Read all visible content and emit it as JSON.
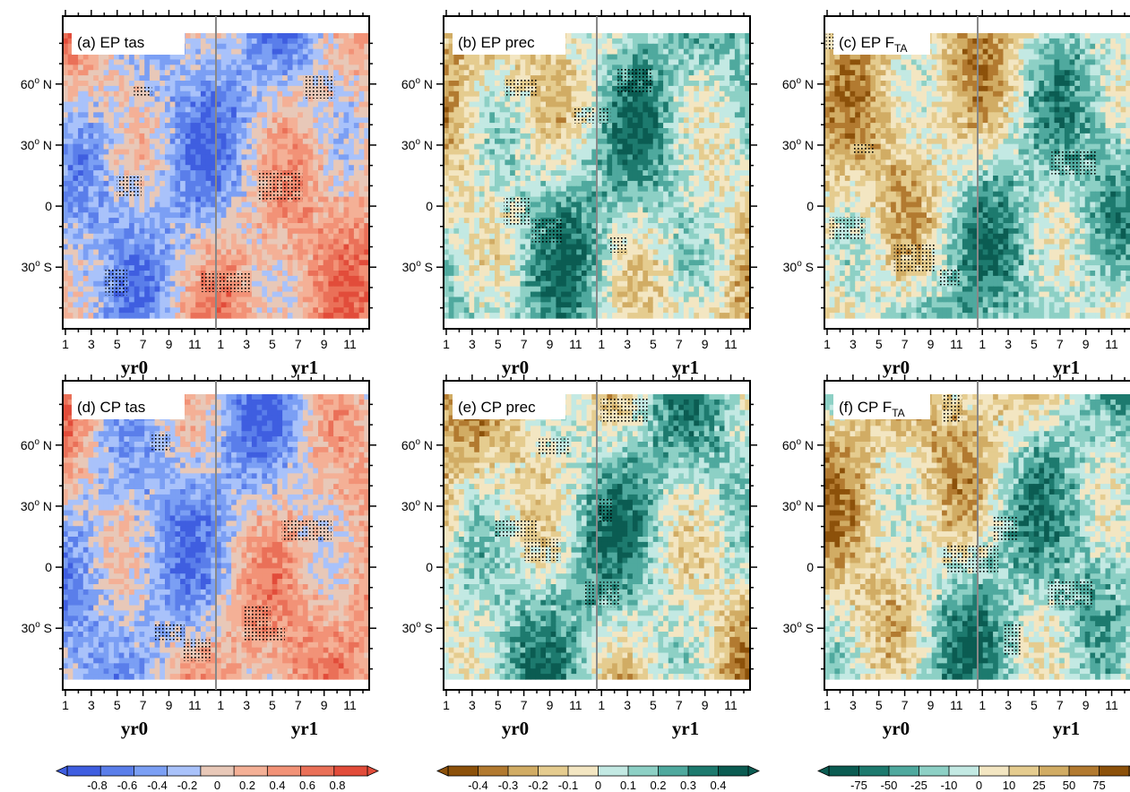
{
  "figure": {
    "panels": [
      {
        "id": "a",
        "title": "(a) EP  tas",
        "scale": "tas"
      },
      {
        "id": "b",
        "title": "(b) EP prec",
        "scale": "prec"
      },
      {
        "id": "c",
        "title": "(c) EP F",
        "title_sub": "TA",
        "scale": "fta"
      },
      {
        "id": "d",
        "title": "(d) CP  tas",
        "scale": "tas"
      },
      {
        "id": "e",
        "title": "(e) CP prec",
        "scale": "prec"
      },
      {
        "id": "f",
        "title": "(f) CP F",
        "title_sub": "TA",
        "scale": "fta"
      }
    ],
    "x_tick_labels": [
      "1",
      "3",
      "5",
      "7",
      "9",
      "11",
      "1",
      "3",
      "5",
      "7",
      "9",
      "11"
    ],
    "year_labels": [
      "yr0",
      "yr1"
    ],
    "y_tick_labels": [
      {
        "lat": 60,
        "text": "60",
        "sup": "o",
        "hemi": " N"
      },
      {
        "lat": 30,
        "text": "30",
        "sup": "o",
        "hemi": " N"
      },
      {
        "lat": 0,
        "text": "0",
        "sup": "",
        "hemi": ""
      },
      {
        "lat": -30,
        "text": "30",
        "sup": "o",
        "hemi": " S"
      }
    ],
    "colorbars": [
      {
        "scale": "tas",
        "labels": [
          "-0.8",
          "-0.6",
          "-0.4",
          "-0.2",
          "0",
          "0.2",
          "0.4",
          "0.6",
          "0.8"
        ],
        "colors": [
          "#3f5ee0",
          "#5a7eea",
          "#7b9ff4",
          "#a9c2fa",
          "#e8c8b8",
          "#f4b096",
          "#f29277",
          "#ea7058",
          "#e24c3a"
        ]
      },
      {
        "scale": "prec",
        "labels": [
          "-0.4",
          "-0.3",
          "-0.2",
          "-0.1",
          "0",
          "0.1",
          "0.2",
          "0.3",
          "0.4"
        ],
        "colors": [
          "#8c510a",
          "#b27a30",
          "#d1ac64",
          "#e5cc8f",
          "#f3e6c2",
          "#c3e9e3",
          "#8dd0c5",
          "#4fa99e",
          "#1d7a6e",
          "#0b5c52"
        ]
      },
      {
        "scale": "fta",
        "labels": [
          "-75",
          "-50",
          "-25",
          "-10",
          "0",
          "10",
          "25",
          "50",
          "75"
        ],
        "colors": [
          "#0b5c52",
          "#1d7a6e",
          "#4fa99e",
          "#8dd0c5",
          "#c3e9e3",
          "#f3e6c2",
          "#e5cc8f",
          "#d1ac64",
          "#b27a30",
          "#8c510a"
        ]
      }
    ]
  },
  "chart_data": [
    {
      "type": "heatmap",
      "panel": "(a) EP  tas",
      "x": "month yr0 Jan - yr1 Dec",
      "y": "latitude",
      "ylim": [
        -55,
        85
      ],
      "clim": [
        -0.8,
        0.8
      ],
      "stippling": true,
      "vertical_line": "between yr0 Dec and yr1 Jan"
    },
    {
      "type": "heatmap",
      "panel": "(b) EP prec",
      "x": "month yr0 Jan - yr1 Dec",
      "y": "latitude",
      "ylim": [
        -55,
        85
      ],
      "clim": [
        -0.4,
        0.4
      ],
      "stippling": true
    },
    {
      "type": "heatmap",
      "panel": "(c) EP F_TA",
      "x": "month yr0 Jan - yr1 Dec",
      "y": "latitude",
      "ylim": [
        -55,
        85
      ],
      "clim": [
        -75,
        75
      ],
      "stippling": true
    },
    {
      "type": "heatmap",
      "panel": "(d) CP  tas",
      "x": "month yr0 Jan - yr1 Dec",
      "y": "latitude",
      "ylim": [
        -55,
        85
      ],
      "clim": [
        -0.8,
        0.8
      ],
      "stippling": true
    },
    {
      "type": "heatmap",
      "panel": "(e) CP prec",
      "x": "month yr0 Jan - yr1 Dec",
      "y": "latitude",
      "ylim": [
        -55,
        85
      ],
      "clim": [
        -0.4,
        0.4
      ],
      "stippling": true
    },
    {
      "type": "heatmap",
      "panel": "(f) CP F_TA",
      "x": "month yr0 Jan - yr1 Dec",
      "y": "latitude",
      "ylim": [
        -55,
        85
      ],
      "clim": [
        -75,
        75
      ],
      "stippling": true
    }
  ]
}
